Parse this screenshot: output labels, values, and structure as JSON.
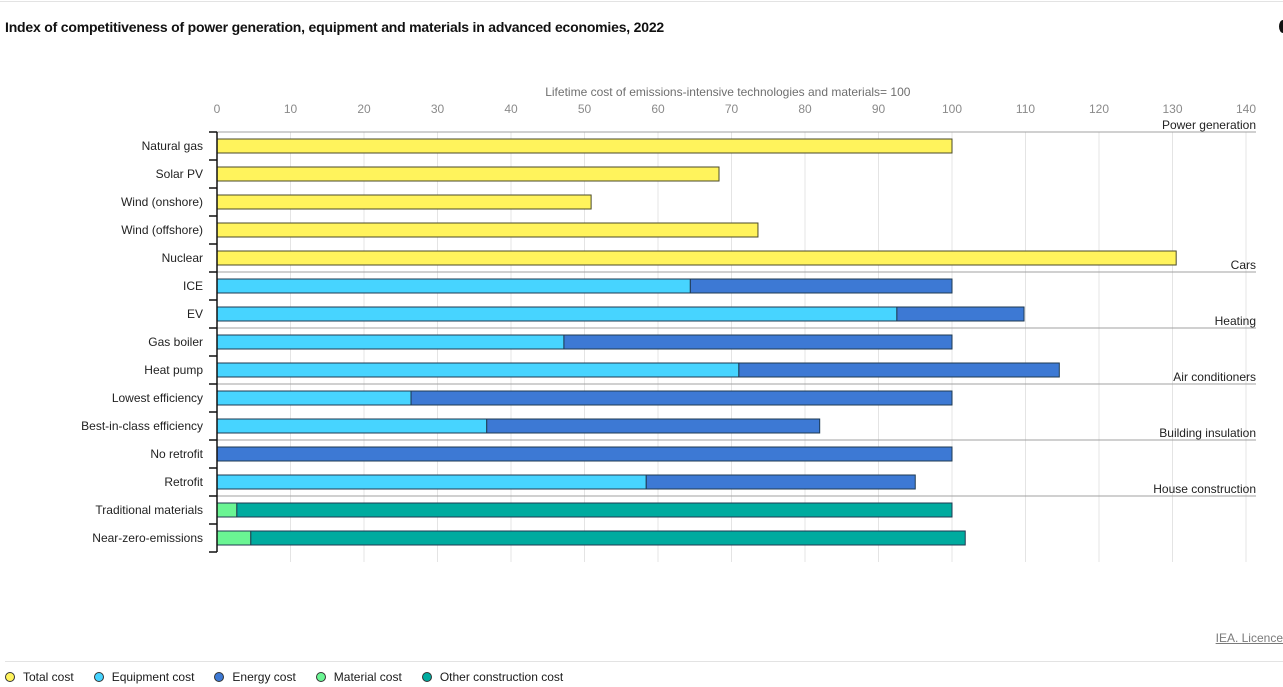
{
  "header": {
    "title": "Index of competitiveness of power generation, equipment and materials in advanced economies, 2022"
  },
  "footer": {
    "licence_link": "IEA. Licence"
  },
  "legend": {
    "items": [
      {
        "key": "total",
        "label": "Total cost",
        "color": "#FFF35C"
      },
      {
        "key": "equipment",
        "label": "Equipment cost",
        "color": "#47D4FF"
      },
      {
        "key": "energy",
        "label": "Energy cost",
        "color": "#3D79D4"
      },
      {
        "key": "material",
        "label": "Material cost",
        "color": "#6AF593"
      },
      {
        "key": "other",
        "label": "Other construction cost",
        "color": "#00AB9F"
      }
    ]
  },
  "chart_data": {
    "type": "bar",
    "orientation": "horizontal",
    "stacked": true,
    "title": "Index of competitiveness of power generation, equipment and materials in advanced economies, 2022",
    "xlabel": "Lifetime cost of emissions-intensive technologies and materials= 100",
    "ylabel": "",
    "xlim": [
      0,
      140
    ],
    "xticks": [
      0,
      10,
      20,
      30,
      40,
      50,
      60,
      70,
      80,
      90,
      100,
      110,
      120,
      130,
      140
    ],
    "grid": true,
    "legend_position": "bottom",
    "groups": [
      {
        "label": "Power generation",
        "categories": [
          "Natural gas",
          "Solar PV",
          "Wind (onshore)",
          "Wind (offshore)",
          "Nuclear"
        ]
      },
      {
        "label": "Cars",
        "categories": [
          "ICE",
          "EV"
        ]
      },
      {
        "label": "Heating",
        "categories": [
          "Gas boiler",
          "Heat pump"
        ]
      },
      {
        "label": "Air conditioners",
        "categories": [
          "Lowest efficiency",
          "Best-in-class efficiency"
        ]
      },
      {
        "label": "Building insulation",
        "categories": [
          "No retrofit",
          "Retrofit"
        ]
      },
      {
        "label": "House construction",
        "categories": [
          "Traditional materials",
          "Near-zero-emissions"
        ]
      }
    ],
    "categories": [
      "Natural gas",
      "Solar PV",
      "Wind (onshore)",
      "Wind (offshore)",
      "Nuclear",
      "ICE",
      "EV",
      "Gas boiler",
      "Heat pump",
      "Lowest efficiency",
      "Best-in-class efficiency",
      "No retrofit",
      "Retrofit",
      "Traditional materials",
      "Near-zero-emissions"
    ],
    "series": [
      {
        "name": "Total cost",
        "key": "total",
        "values": [
          100,
          68.3,
          50.9,
          73.6,
          130.5,
          0,
          0,
          0,
          0,
          0,
          0,
          0,
          0,
          0,
          0
        ]
      },
      {
        "name": "Equipment cost",
        "key": "equipment",
        "values": [
          0,
          0,
          0,
          0,
          0,
          64.4,
          92.5,
          47.2,
          71.0,
          26.4,
          36.7,
          0,
          58.4,
          0,
          0
        ]
      },
      {
        "name": "Energy cost",
        "key": "energy",
        "values": [
          0,
          0,
          0,
          0,
          0,
          35.6,
          17.3,
          52.8,
          43.6,
          73.6,
          45.3,
          100,
          36.6,
          0,
          0
        ]
      },
      {
        "name": "Material cost",
        "key": "material",
        "values": [
          0,
          0,
          0,
          0,
          0,
          0,
          0,
          0,
          0,
          0,
          0,
          0,
          0,
          2.7,
          4.6
        ]
      },
      {
        "name": "Other construction cost",
        "key": "other",
        "values": [
          0,
          0,
          0,
          0,
          0,
          0,
          0,
          0,
          0,
          0,
          0,
          0,
          0,
          97.3,
          97.2
        ]
      }
    ]
  }
}
